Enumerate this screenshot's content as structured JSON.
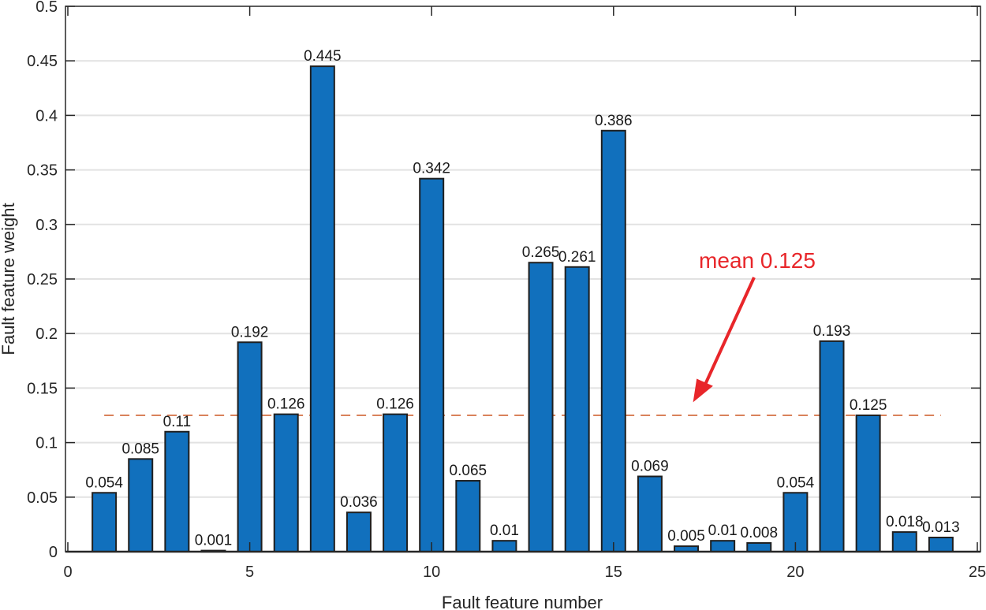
{
  "chart_data": {
    "type": "bar",
    "title": "",
    "xlabel": "Fault feature number",
    "ylabel": "Fault feature weight",
    "xlim": [
      0,
      25
    ],
    "ylim": [
      0,
      0.5
    ],
    "x_ticks": [
      0,
      5,
      10,
      15,
      20,
      25
    ],
    "y_ticks": [
      0,
      0.05,
      0.1,
      0.15,
      0.2,
      0.25,
      0.3,
      0.35,
      0.4,
      0.45,
      0.5
    ],
    "y_tick_labels": [
      "0",
      "0.05",
      "0.1",
      "0.15",
      "0.2",
      "0.25",
      "0.3",
      "0.35",
      "0.4",
      "0.45",
      "0.5"
    ],
    "grid": "horizontal",
    "legend": null,
    "categories": [
      1,
      2,
      3,
      4,
      5,
      6,
      7,
      8,
      9,
      10,
      11,
      12,
      13,
      14,
      15,
      16,
      17,
      18,
      19,
      20,
      21,
      22,
      23,
      24
    ],
    "values": [
      0.054,
      0.085,
      0.11,
      0.001,
      0.192,
      0.126,
      0.445,
      0.036,
      0.126,
      0.342,
      0.065,
      0.01,
      0.265,
      0.261,
      0.386,
      0.069,
      0.005,
      0.01,
      0.008,
      0.054,
      0.193,
      0.125,
      0.018,
      0.013
    ],
    "value_labels": [
      "0.054",
      "0.085",
      "0.11",
      "0.001",
      "0.192",
      "0.126",
      "0.445",
      "0.036",
      "0.126",
      "0.342",
      "0.065",
      "0.01",
      "0.265",
      "0.261",
      "0.386",
      "0.069",
      "0.005",
      "0.01",
      "0.008",
      "0.054",
      "0.193",
      "0.125",
      "0.018",
      "0.013"
    ],
    "bar_color": "#1170bd",
    "mean_line": {
      "value": 0.125,
      "x_start": 1,
      "x_end": 24,
      "style": "dashed",
      "color": "#d9825b"
    },
    "annotations": [
      {
        "text": "mean 0.125",
        "color": "#e8262a",
        "arrow_to": [
          17.2,
          0.14
        ]
      }
    ]
  }
}
